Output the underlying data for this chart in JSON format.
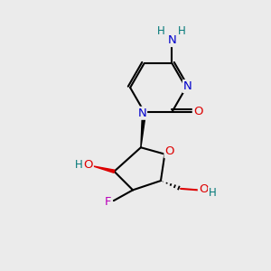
{
  "background_color": "#ebebeb",
  "atom_colors": {
    "C": "#000000",
    "N": "#0000cc",
    "O": "#dd0000",
    "F": "#bb00bb",
    "H": "#007777"
  },
  "bond_color": "#000000",
  "bond_width": 1.5,
  "figsize": [
    3.0,
    3.0
  ],
  "dpi": 100
}
